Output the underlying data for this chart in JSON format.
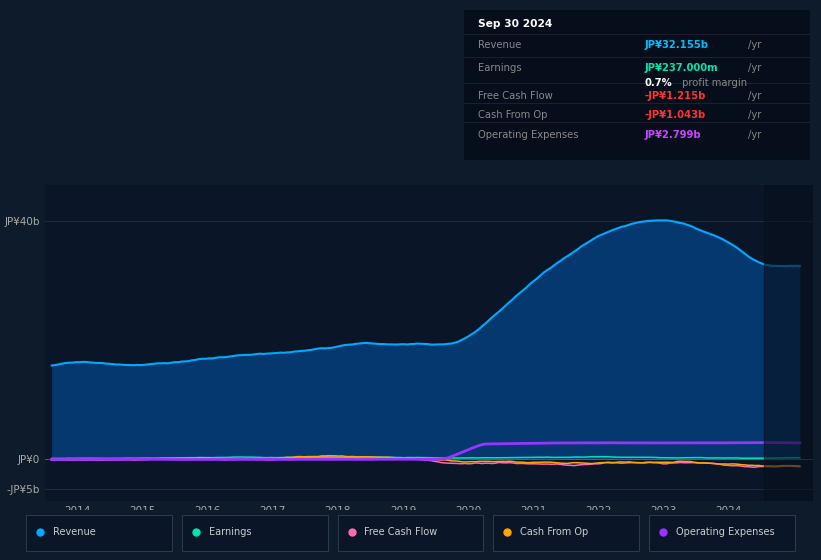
{
  "bg_color": "#0d1b2a",
  "plot_bg_color": "#0d1b2a",
  "chart_bg_color": "#0a1628",
  "grid_color": "#1e3050",
  "tooltip": {
    "date": "Sep 30 2024",
    "revenue_label": "Revenue",
    "revenue_value": "JP¥32.155b",
    "revenue_color": "#00bfff",
    "earnings_label": "Earnings",
    "earnings_value": "JP¥237.000m",
    "earnings_color": "#00e5b0",
    "profit_margin": "0.7%",
    "profit_color": "#ffffff",
    "profit_text_color": "#888888",
    "fcf_label": "Free Cash Flow",
    "fcf_value": "-JP¥1.215b",
    "fcf_color": "#ff3333",
    "cashop_label": "Cash From Op",
    "cashop_value": "-JP¥1.043b",
    "cashop_color": "#ff3333",
    "opex_label": "Operating Expenses",
    "opex_value": "JP¥2.799b",
    "opex_color": "#cc44ff"
  },
  "ytick_labels": [
    "JP¥40b",
    "JP¥0",
    "-JP¥5b"
  ],
  "ytick_values": [
    40000000000,
    0,
    -5000000000
  ],
  "xtick_labels": [
    "2014",
    "2015",
    "2016",
    "2017",
    "2018",
    "2019",
    "2020",
    "2021",
    "2022",
    "2023",
    "2024"
  ],
  "xtick_positions": [
    2014,
    2015,
    2016,
    2017,
    2018,
    2019,
    2020,
    2021,
    2022,
    2023,
    2024
  ],
  "ylim": [
    -7000000000,
    46000000000
  ],
  "xlim_start": 2013.5,
  "xlim_end": 2025.3,
  "dark_overlay_start": 2024.55,
  "series_colors": {
    "revenue": "#00aaff",
    "revenue_fill": "#0055aa",
    "earnings": "#00e5b0",
    "fcf": "#ff69b4",
    "cashop": "#ffa500",
    "opex": "#9933ff"
  },
  "legend": [
    {
      "label": "Revenue",
      "color": "#00aaff"
    },
    {
      "label": "Earnings",
      "color": "#00e5b0"
    },
    {
      "label": "Free Cash Flow",
      "color": "#ff69b4"
    },
    {
      "label": "Cash From Op",
      "color": "#ffa500"
    },
    {
      "label": "Operating Expenses",
      "color": "#9933ff"
    }
  ]
}
